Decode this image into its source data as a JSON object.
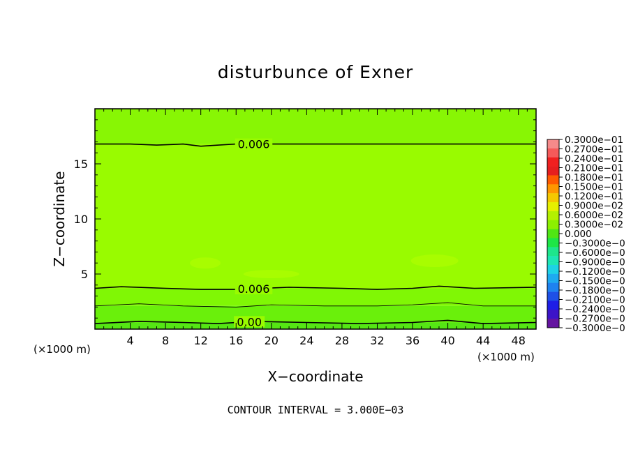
{
  "chart_data": {
    "type": "heatmap",
    "title": "disturbunce of Exner",
    "xlabel": "X−coordinate",
    "ylabel": "Z−coordinate",
    "x_unit": "(×1000 m)",
    "x_unit_right": "(×1000 m)",
    "xlim": [
      0,
      50
    ],
    "ylim": [
      0,
      20
    ],
    "x_ticks": [
      4,
      8,
      12,
      16,
      20,
      24,
      28,
      32,
      36,
      40,
      44,
      48
    ],
    "y_ticks": [
      5,
      10,
      15
    ],
    "footer": "CONTOUR INTERVAL = 3.000E−03",
    "contour_interval": 0.003,
    "contour_lines": [
      {
        "level": 0.0,
        "label": "0.00",
        "label_x": 17.5,
        "z": [
          [
            0,
            0.5
          ],
          [
            5,
            0.7
          ],
          [
            10,
            0.6
          ],
          [
            14,
            0.5
          ],
          [
            18,
            0.7
          ],
          [
            24,
            0.6
          ],
          [
            30,
            0.5
          ],
          [
            36,
            0.6
          ],
          [
            40,
            0.8
          ],
          [
            44,
            0.5
          ],
          [
            50,
            0.6
          ]
        ]
      },
      {
        "level": 0.003,
        "label": "",
        "label_x": null,
        "z": [
          [
            0,
            2.1
          ],
          [
            5,
            2.3
          ],
          [
            10,
            2.1
          ],
          [
            16,
            2.0
          ],
          [
            20,
            2.2
          ],
          [
            26,
            2.1
          ],
          [
            32,
            2.1
          ],
          [
            36,
            2.2
          ],
          [
            40,
            2.4
          ],
          [
            44,
            2.1
          ],
          [
            50,
            2.1
          ]
        ]
      },
      {
        "level": 0.006,
        "label": "0.006",
        "label_x": 18.0,
        "z": [
          [
            0,
            3.7
          ],
          [
            3,
            3.85
          ],
          [
            8,
            3.7
          ],
          [
            12,
            3.6
          ],
          [
            16,
            3.6
          ],
          [
            22,
            3.8
          ],
          [
            28,
            3.7
          ],
          [
            32,
            3.6
          ],
          [
            36,
            3.7
          ],
          [
            39,
            3.9
          ],
          [
            43,
            3.7
          ],
          [
            50,
            3.8
          ]
        ]
      },
      {
        "level": 0.006,
        "label": "0.006",
        "label_x": 18.0,
        "z": [
          [
            0,
            16.8
          ],
          [
            4,
            16.8
          ],
          [
            7,
            16.7
          ],
          [
            10,
            16.8
          ],
          [
            12,
            16.6
          ],
          [
            14,
            16.7
          ],
          [
            16,
            16.8
          ],
          [
            24,
            16.8
          ],
          [
            36,
            16.8
          ],
          [
            50,
            16.8
          ]
        ]
      }
    ],
    "fill_bands": [
      {
        "z_from": 0.0,
        "z_to": 0.6,
        "color": "#55e614"
      },
      {
        "z_from": 0.6,
        "z_to": 2.1,
        "color": "#6af00b"
      },
      {
        "z_from": 2.1,
        "z_to": 3.7,
        "color": "#80f705"
      },
      {
        "z_from": 3.7,
        "z_to": 16.8,
        "color": "#99fb00"
      },
      {
        "z_from": 16.8,
        "z_to": 20.0,
        "color": "#88f604"
      }
    ],
    "colorbar": {
      "labels": [
        "0.3000e−01",
        "0.2700e−01",
        "0.2400e−01",
        "0.2100e−01",
        "0.1800e−01",
        "0.1500e−01",
        "0.1200e−01",
        "0.9000e−02",
        "0.6000e−02",
        "0.3000e−02",
        "0.000",
        "−0.3000e−0",
        "−0.6000e−0",
        "−0.9000e−0",
        "−0.1200e−0",
        "−0.1500e−0",
        "−0.1800e−0",
        "−0.2100e−0",
        "−0.2400e−0",
        "−0.2700e−0",
        "−0.3000e−0"
      ],
      "colors": [
        "#f58a8a",
        "#f55a5a",
        "#f02020",
        "#e61e1e",
        "#ff5a00",
        "#ff9600",
        "#f5c800",
        "#e6f000",
        "#b4f000",
        "#8cf000",
        "#50e614",
        "#1ee646",
        "#1ee68c",
        "#1ee6b4",
        "#1ed2e6",
        "#1eaaf0",
        "#1e82f0",
        "#1e50e6",
        "#1e1ee6",
        "#3c14c8",
        "#6414a0"
      ]
    }
  }
}
